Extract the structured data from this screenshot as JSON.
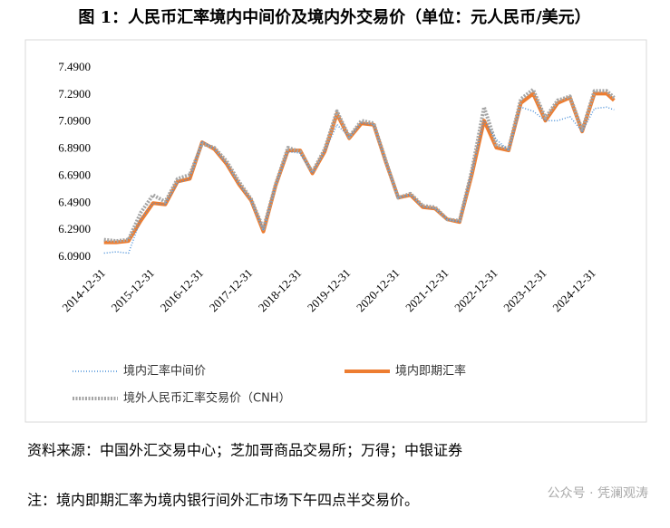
{
  "chart_data": {
    "type": "line",
    "title": "图 1：人民币汇率境内中间价及境内外交易价（单位：元人民币/美元）",
    "x": [
      2015.0,
      2015.25,
      2015.5,
      2015.75,
      2016.0,
      2016.25,
      2016.5,
      2016.75,
      2017.0,
      2017.25,
      2017.5,
      2017.75,
      2018.0,
      2018.25,
      2018.5,
      2018.75,
      2019.0,
      2019.25,
      2019.5,
      2019.75,
      2020.0,
      2020.25,
      2020.5,
      2020.75,
      2021.0,
      2021.25,
      2021.5,
      2021.75,
      2022.0,
      2022.25,
      2022.5,
      2022.75,
      2023.0,
      2023.25,
      2023.5,
      2023.75,
      2024.0,
      2024.25,
      2024.5,
      2024.75,
      2025.0,
      2025.25,
      2025.4
    ],
    "series": [
      {
        "name": "境内汇率中间价",
        "color": "#4a90d9",
        "style": "dotted",
        "values": [
          6.12,
          6.13,
          6.12,
          6.37,
          6.49,
          6.48,
          6.64,
          6.67,
          6.95,
          6.89,
          6.78,
          6.63,
          6.51,
          6.29,
          6.62,
          6.87,
          6.86,
          6.71,
          6.87,
          7.07,
          6.98,
          7.08,
          7.07,
          6.79,
          6.53,
          6.55,
          6.46,
          6.45,
          6.37,
          6.35,
          6.72,
          7.1,
          6.96,
          6.88,
          7.2,
          7.17,
          7.1,
          7.1,
          7.13,
          7.02,
          7.19,
          7.2,
          7.18
        ]
      },
      {
        "name": "境内即期汇率",
        "color": "#ed7d31",
        "style": "solid",
        "values": [
          6.2,
          6.2,
          6.21,
          6.36,
          6.49,
          6.48,
          6.65,
          6.67,
          6.94,
          6.89,
          6.78,
          6.63,
          6.51,
          6.28,
          6.62,
          6.88,
          6.88,
          6.71,
          6.87,
          7.15,
          6.97,
          7.08,
          7.07,
          6.79,
          6.53,
          6.55,
          6.46,
          6.45,
          6.37,
          6.35,
          6.7,
          7.1,
          6.9,
          6.88,
          7.23,
          7.3,
          7.1,
          7.23,
          7.27,
          7.02,
          7.3,
          7.3,
          7.25
        ]
      },
      {
        "name": "境外人民币汇率交易价（CNH）",
        "color": "#a5a5a5",
        "style": "dashed",
        "values": [
          6.22,
          6.21,
          6.22,
          6.42,
          6.55,
          6.5,
          6.67,
          6.7,
          6.93,
          6.9,
          6.8,
          6.65,
          6.52,
          6.3,
          6.63,
          6.9,
          6.87,
          6.72,
          6.89,
          7.17,
          6.98,
          7.1,
          7.08,
          6.8,
          6.53,
          6.56,
          6.47,
          6.46,
          6.37,
          6.36,
          6.73,
          7.2,
          6.92,
          6.89,
          7.26,
          7.33,
          7.12,
          7.25,
          7.28,
          7.03,
          7.32,
          7.32,
          7.27
        ]
      }
    ],
    "xlim": [
      2014.95,
      2025.45
    ],
    "xticks": [
      {
        "value": 2015.0,
        "label": "2014-12-31"
      },
      {
        "value": 2016.0,
        "label": "2015-12-31"
      },
      {
        "value": 2017.0,
        "label": "2016-12-31"
      },
      {
        "value": 2018.0,
        "label": "2017-12-31"
      },
      {
        "value": 2019.0,
        "label": "2018-12-31"
      },
      {
        "value": 2020.0,
        "label": "2019-12-31"
      },
      {
        "value": 2021.0,
        "label": "2020-12-31"
      },
      {
        "value": 2022.0,
        "label": "2021-12-31"
      },
      {
        "value": 2023.0,
        "label": "2022-12-31"
      },
      {
        "value": 2024.0,
        "label": "2023-12-31"
      },
      {
        "value": 2025.0,
        "label": "2024-12-31"
      }
    ],
    "ylim": [
      6.09,
      7.49
    ],
    "yticks": [
      {
        "value": 6.09,
        "label": "6.0900"
      },
      {
        "value": 6.29,
        "label": "6.2900"
      },
      {
        "value": 6.49,
        "label": "6.4900"
      },
      {
        "value": 6.69,
        "label": "6.6900"
      },
      {
        "value": 6.89,
        "label": "6.8900"
      },
      {
        "value": 7.09,
        "label": "7.0900"
      },
      {
        "value": 7.29,
        "label": "7.2900"
      },
      {
        "value": 7.49,
        "label": "7.4900"
      }
    ],
    "grid": false
  },
  "source": "资料来源：中国外汇交易中心；芝加哥商品交易所；万得；中银证券",
  "note": "注：境内即期汇率为境内银行间外汇市场下午四点半交易价。",
  "watermark": "公众号 · 凭澜观涛"
}
